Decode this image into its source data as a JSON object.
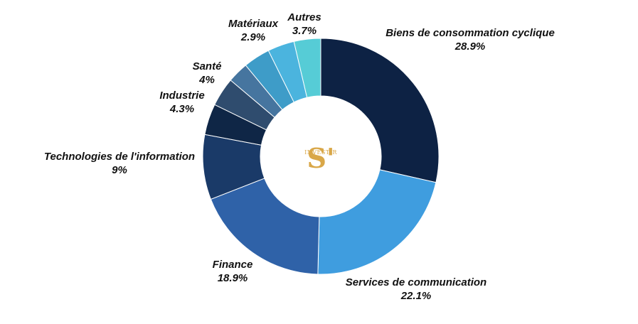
{
  "chart_data": {
    "type": "pie",
    "style": "donut",
    "slices": [
      {
        "label": "Biens de consommation cyclique",
        "value": 28.9,
        "display": "28.9%",
        "color": "#0d2244"
      },
      {
        "label": "Services de communication",
        "value": 22.1,
        "display": "22.1%",
        "color": "#3f9ddf"
      },
      {
        "label": "Finance",
        "value": 18.9,
        "display": "18.9%",
        "color": "#2f62a8"
      },
      {
        "label": "Technologies de l'information",
        "value": 9,
        "display": "9%",
        "color": "#1a3a68"
      },
      {
        "label": "Industrie",
        "value": 4.3,
        "display": "4.3%",
        "color": "#0f2646"
      },
      {
        "label": "Santé",
        "value": 4,
        "display": "4%",
        "color": "#2f4c6e"
      },
      {
        "label": "Matériaux",
        "value": 2.9,
        "display": "2.9%",
        "color": "#46759f"
      },
      {
        "label": "Autres",
        "value": 3.7,
        "display": "3.7%",
        "color": "#3e9cc8"
      },
      {
        "label": "",
        "value": 3.7,
        "display": "",
        "color": "#4bb4de"
      },
      {
        "label": "",
        "value": 3.7,
        "display": "",
        "color": "#56ccd6"
      }
    ]
  },
  "logo": {
    "mark": "S'",
    "text": "INVESTIR"
  }
}
